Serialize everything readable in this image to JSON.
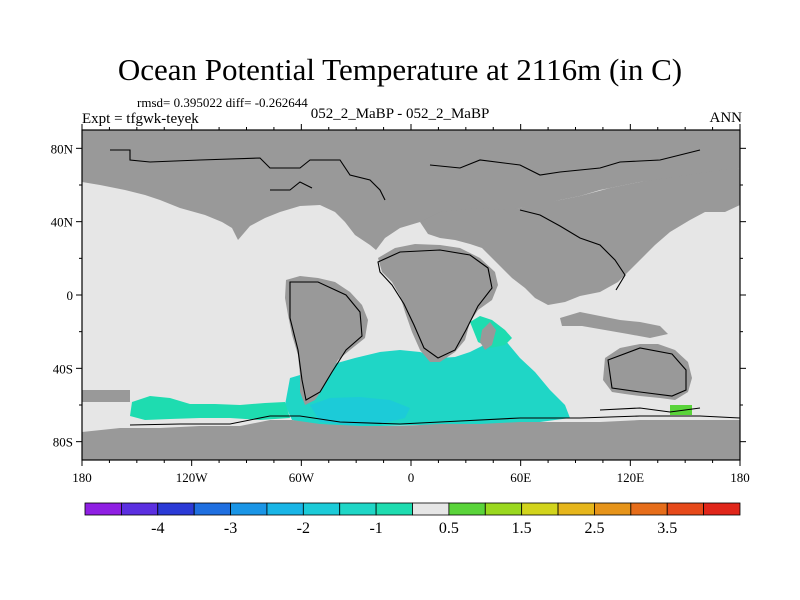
{
  "figure": {
    "title": "Ocean Potential Temperature at 2116m (in C)",
    "stats": "rmsd= 0.395022 diff= -0.262644",
    "expt_label": "Expt = tfgwk-teyek",
    "case_label": "052_2_MaBP - 052_2_MaBP",
    "season": "ANN"
  },
  "map": {
    "projection": "cylindrical equidistant",
    "lon_range": [
      -180,
      180
    ],
    "lat_range": [
      -90,
      90
    ],
    "lon_ticks": [
      {
        "value": -180,
        "label": "180"
      },
      {
        "value": -120,
        "label": "120W"
      },
      {
        "value": -60,
        "label": "60W"
      },
      {
        "value": 0,
        "label": "0"
      },
      {
        "value": 60,
        "label": "60E"
      },
      {
        "value": 120,
        "label": "120E"
      },
      {
        "value": 180,
        "label": "180"
      }
    ],
    "lat_ticks": [
      {
        "value": 80,
        "label": "80N"
      },
      {
        "value": 40,
        "label": "40N"
      },
      {
        "value": 0,
        "label": "0"
      },
      {
        "value": -40,
        "label": "40S"
      },
      {
        "value": -80,
        "label": "80S"
      }
    ],
    "colors": {
      "land": "#999999",
      "near_zero_ocean": "#e6e6e6",
      "coastline": "#000000"
    }
  },
  "chart_data": {
    "type": "heatmap",
    "levels": [
      -4.5,
      -4,
      -3.5,
      -3,
      -2.5,
      -2,
      -1.5,
      -1,
      -0.5,
      0.5,
      1,
      1.5,
      2,
      2.5,
      3,
      3.5,
      4
    ],
    "level_labels": [
      "-4",
      "-3",
      "-2",
      "-1",
      "0.5",
      "1.5",
      "2.5",
      "3.5"
    ],
    "colors": [
      "#8f1fe3",
      "#5b2fe0",
      "#2b3ad6",
      "#1f6fe0",
      "#1a95e6",
      "#19b5e6",
      "#1ccbd8",
      "#1fd6c6",
      "#1edcb0",
      "#e6e6e6",
      "#5ad43a",
      "#9ad81f",
      "#d2d41c",
      "#e6b61c",
      "#e6941a",
      "#e66d1a",
      "#e6491a",
      "#e0261a"
    ],
    "anomaly_regions": [
      {
        "region": "Southern Ocean, Atlantic-Indian sector",
        "value": -1
      },
      {
        "region": "Southern Ocean, South Pacific",
        "value": -0.75
      },
      {
        "region": "Weddell Sea",
        "value": -1.25
      },
      {
        "region": "off Madagascar",
        "value": -0.75
      },
      {
        "region": "south of Australia",
        "value": 1
      }
    ]
  }
}
